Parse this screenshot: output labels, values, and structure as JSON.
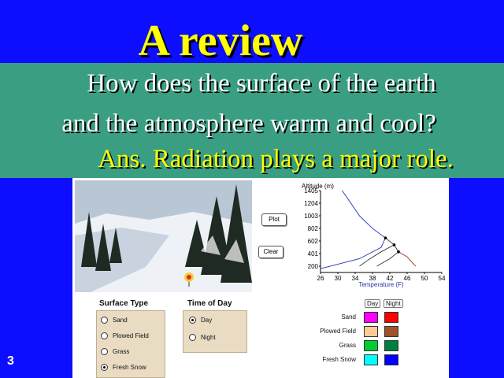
{
  "slide": {
    "title": "A review",
    "question_line1": "How does the surface of the earth",
    "question_line2": "and the atmosphere warm and cool?",
    "answer": "Ans. Radiation plays a major role.",
    "slide_number": "3"
  },
  "simulation": {
    "buttons": {
      "plot": "Plot",
      "clear": "Clear"
    },
    "surface_type": {
      "label": "Surface Type",
      "options": [
        "Sand",
        "Plowed Field",
        "Grass",
        "Fresh Snow"
      ],
      "selected": "Fresh Snow"
    },
    "time_of_day": {
      "label": "Time of Day",
      "options": [
        "Day",
        "Night"
      ],
      "selected": "Day"
    },
    "legend": {
      "columns": [
        "Day",
        "Night"
      ],
      "rows": [
        {
          "label": "Sand",
          "day_color": "#ff00ff",
          "night_color": "#ff0000"
        },
        {
          "label": "Plowed Field",
          "day_color": "#ffcc99",
          "night_color": "#a0522d"
        },
        {
          "label": "Grass",
          "day_color": "#00cc33",
          "night_color": "#008040"
        },
        {
          "label": "Fresh Snow",
          "day_color": "#00ffff",
          "night_color": "#0000ff"
        }
      ]
    }
  },
  "chart_data": {
    "type": "line",
    "ylabel": "Altitude (m)",
    "xlabel": "Temperature (F)",
    "y_ticks": [
      "1405",
      "1204",
      "1003",
      "802",
      "602",
      "401",
      "200"
    ],
    "x_ticks": [
      "26",
      "30",
      "34",
      "38",
      "42",
      "46",
      "50",
      "54"
    ],
    "xlim": [
      26,
      54
    ],
    "ylim": [
      100,
      1405
    ],
    "series": [
      {
        "color": "#2233aa",
        "points": [
          [
            31,
            1405
          ],
          [
            33,
            1204
          ],
          [
            35,
            1003
          ],
          [
            38,
            802
          ],
          [
            41,
            650
          ],
          [
            40,
            500
          ],
          [
            35,
            320
          ],
          [
            26,
            160
          ]
        ]
      },
      {
        "color": "#333333",
        "points": [
          [
            41,
            650
          ],
          [
            43,
            540
          ],
          [
            40,
            430
          ],
          [
            37,
            300
          ],
          [
            35,
            200
          ]
        ]
      },
      {
        "color": "#333333",
        "points": [
          [
            43,
            540
          ],
          [
            44,
            430
          ],
          [
            42,
            320
          ],
          [
            39,
            200
          ]
        ]
      },
      {
        "color": "#8b3a1a",
        "points": [
          [
            44,
            430
          ],
          [
            46,
            350
          ],
          [
            47,
            270
          ],
          [
            48,
            200
          ]
        ]
      }
    ]
  }
}
